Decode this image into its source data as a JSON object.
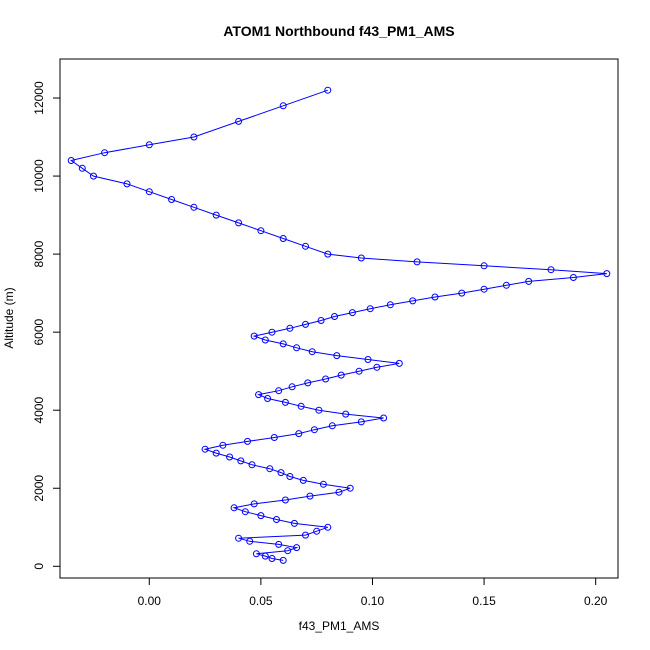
{
  "chart_data": {
    "type": "scatter",
    "title": "ATOM1 Northbound f43_PM1_AMS",
    "xlabel": "f43_PM1_AMS",
    "ylabel": "Altitude (m)",
    "xlim": [
      -0.04,
      0.21
    ],
    "ylim": [
      -300,
      13000
    ],
    "x_ticks": [
      0.0,
      0.05,
      0.1,
      0.15,
      0.2
    ],
    "x_tick_labels": [
      "0.00",
      "0.05",
      "0.10",
      "0.15",
      "0.20"
    ],
    "y_ticks": [
      0,
      2000,
      4000,
      6000,
      8000,
      10000,
      12000
    ],
    "y_tick_labels": [
      "0",
      "2000",
      "4000",
      "6000",
      "8000",
      "10000",
      "12000"
    ],
    "grid": false,
    "legend": "none",
    "marker": "open-circle",
    "connected": true,
    "color": "#0000ff",
    "series": [
      {
        "x": [
          0.06,
          0.055,
          0.052,
          0.048,
          0.062,
          0.066,
          0.058,
          0.045,
          0.04,
          0.07,
          0.075,
          0.08,
          0.065,
          0.057,
          0.05,
          0.043,
          0.038,
          0.047,
          0.061,
          0.072,
          0.085,
          0.09,
          0.078,
          0.069,
          0.063,
          0.059,
          0.054,
          0.046,
          0.041,
          0.036,
          0.03,
          0.025,
          0.033,
          0.044,
          0.056,
          0.067,
          0.074,
          0.082,
          0.095,
          0.105,
          0.088,
          0.076,
          0.068,
          0.061,
          0.053,
          0.049,
          0.058,
          0.064,
          0.071,
          0.079,
          0.086,
          0.094,
          0.102,
          0.112,
          0.098,
          0.084,
          0.073,
          0.066,
          0.06,
          0.052,
          0.047,
          0.055,
          0.063,
          0.07,
          0.077,
          0.083,
          0.091,
          0.099,
          0.108,
          0.118,
          0.128,
          0.14,
          0.15,
          0.16,
          0.17,
          0.19,
          0.205,
          0.18,
          0.15,
          0.12,
          0.095,
          0.08,
          0.07,
          0.06,
          0.05,
          0.04,
          0.03,
          0.02,
          0.01,
          0.0,
          -0.01,
          -0.025,
          -0.03,
          -0.035,
          -0.02,
          0.0,
          0.02,
          0.04,
          0.06,
          0.08
        ],
        "y": [
          150,
          200,
          260,
          320,
          400,
          480,
          560,
          640,
          720,
          800,
          900,
          1000,
          1100,
          1200,
          1300,
          1400,
          1500,
          1600,
          1700,
          1800,
          1900,
          2000,
          2100,
          2200,
          2300,
          2400,
          2500,
          2600,
          2700,
          2800,
          2900,
          3000,
          3100,
          3200,
          3300,
          3400,
          3500,
          3600,
          3700,
          3800,
          3900,
          4000,
          4100,
          4200,
          4300,
          4400,
          4500,
          4600,
          4700,
          4800,
          4900,
          5000,
          5100,
          5200,
          5300,
          5400,
          5500,
          5600,
          5700,
          5800,
          5900,
          6000,
          6100,
          6200,
          6300,
          6400,
          6500,
          6600,
          6700,
          6800,
          6900,
          7000,
          7100,
          7200,
          7300,
          7400,
          7500,
          7600,
          7700,
          7800,
          7900,
          8000,
          8200,
          8400,
          8600,
          8800,
          9000,
          9200,
          9400,
          9600,
          9800,
          10000,
          10200,
          10400,
          10600,
          10800,
          11000,
          11400,
          11800,
          12200
        ]
      }
    ]
  }
}
